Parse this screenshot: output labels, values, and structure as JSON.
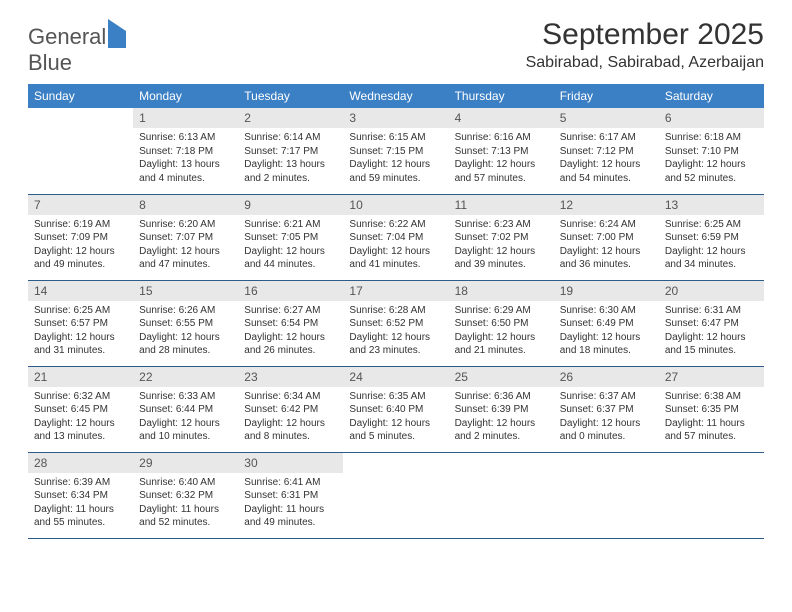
{
  "logo": {
    "word1": "General",
    "word2": "Blue"
  },
  "title": "September 2025",
  "location": "Sabirabad, Sabirabad, Azerbaijan",
  "colors": {
    "header_bg": "#3b7fc4",
    "header_text": "#ffffff",
    "daynum_bg": "#e8e8e8",
    "row_border": "#2e5c8a",
    "body_text": "#333333",
    "background": "#ffffff"
  },
  "typography": {
    "title_fontsize": 30,
    "location_fontsize": 16,
    "header_fontsize": 12,
    "daynum_fontsize": 12,
    "info_fontsize": 10
  },
  "day_headers": [
    "Sunday",
    "Monday",
    "Tuesday",
    "Wednesday",
    "Thursday",
    "Friday",
    "Saturday"
  ],
  "weeks": [
    [
      {
        "n": "",
        "sr": "",
        "ss": "",
        "dl": ""
      },
      {
        "n": "1",
        "sr": "Sunrise: 6:13 AM",
        "ss": "Sunset: 7:18 PM",
        "dl": "Daylight: 13 hours and 4 minutes."
      },
      {
        "n": "2",
        "sr": "Sunrise: 6:14 AM",
        "ss": "Sunset: 7:17 PM",
        "dl": "Daylight: 13 hours and 2 minutes."
      },
      {
        "n": "3",
        "sr": "Sunrise: 6:15 AM",
        "ss": "Sunset: 7:15 PM",
        "dl": "Daylight: 12 hours and 59 minutes."
      },
      {
        "n": "4",
        "sr": "Sunrise: 6:16 AM",
        "ss": "Sunset: 7:13 PM",
        "dl": "Daylight: 12 hours and 57 minutes."
      },
      {
        "n": "5",
        "sr": "Sunrise: 6:17 AM",
        "ss": "Sunset: 7:12 PM",
        "dl": "Daylight: 12 hours and 54 minutes."
      },
      {
        "n": "6",
        "sr": "Sunrise: 6:18 AM",
        "ss": "Sunset: 7:10 PM",
        "dl": "Daylight: 12 hours and 52 minutes."
      }
    ],
    [
      {
        "n": "7",
        "sr": "Sunrise: 6:19 AM",
        "ss": "Sunset: 7:09 PM",
        "dl": "Daylight: 12 hours and 49 minutes."
      },
      {
        "n": "8",
        "sr": "Sunrise: 6:20 AM",
        "ss": "Sunset: 7:07 PM",
        "dl": "Daylight: 12 hours and 47 minutes."
      },
      {
        "n": "9",
        "sr": "Sunrise: 6:21 AM",
        "ss": "Sunset: 7:05 PM",
        "dl": "Daylight: 12 hours and 44 minutes."
      },
      {
        "n": "10",
        "sr": "Sunrise: 6:22 AM",
        "ss": "Sunset: 7:04 PM",
        "dl": "Daylight: 12 hours and 41 minutes."
      },
      {
        "n": "11",
        "sr": "Sunrise: 6:23 AM",
        "ss": "Sunset: 7:02 PM",
        "dl": "Daylight: 12 hours and 39 minutes."
      },
      {
        "n": "12",
        "sr": "Sunrise: 6:24 AM",
        "ss": "Sunset: 7:00 PM",
        "dl": "Daylight: 12 hours and 36 minutes."
      },
      {
        "n": "13",
        "sr": "Sunrise: 6:25 AM",
        "ss": "Sunset: 6:59 PM",
        "dl": "Daylight: 12 hours and 34 minutes."
      }
    ],
    [
      {
        "n": "14",
        "sr": "Sunrise: 6:25 AM",
        "ss": "Sunset: 6:57 PM",
        "dl": "Daylight: 12 hours and 31 minutes."
      },
      {
        "n": "15",
        "sr": "Sunrise: 6:26 AM",
        "ss": "Sunset: 6:55 PM",
        "dl": "Daylight: 12 hours and 28 minutes."
      },
      {
        "n": "16",
        "sr": "Sunrise: 6:27 AM",
        "ss": "Sunset: 6:54 PM",
        "dl": "Daylight: 12 hours and 26 minutes."
      },
      {
        "n": "17",
        "sr": "Sunrise: 6:28 AM",
        "ss": "Sunset: 6:52 PM",
        "dl": "Daylight: 12 hours and 23 minutes."
      },
      {
        "n": "18",
        "sr": "Sunrise: 6:29 AM",
        "ss": "Sunset: 6:50 PM",
        "dl": "Daylight: 12 hours and 21 minutes."
      },
      {
        "n": "19",
        "sr": "Sunrise: 6:30 AM",
        "ss": "Sunset: 6:49 PM",
        "dl": "Daylight: 12 hours and 18 minutes."
      },
      {
        "n": "20",
        "sr": "Sunrise: 6:31 AM",
        "ss": "Sunset: 6:47 PM",
        "dl": "Daylight: 12 hours and 15 minutes."
      }
    ],
    [
      {
        "n": "21",
        "sr": "Sunrise: 6:32 AM",
        "ss": "Sunset: 6:45 PM",
        "dl": "Daylight: 12 hours and 13 minutes."
      },
      {
        "n": "22",
        "sr": "Sunrise: 6:33 AM",
        "ss": "Sunset: 6:44 PM",
        "dl": "Daylight: 12 hours and 10 minutes."
      },
      {
        "n": "23",
        "sr": "Sunrise: 6:34 AM",
        "ss": "Sunset: 6:42 PM",
        "dl": "Daylight: 12 hours and 8 minutes."
      },
      {
        "n": "24",
        "sr": "Sunrise: 6:35 AM",
        "ss": "Sunset: 6:40 PM",
        "dl": "Daylight: 12 hours and 5 minutes."
      },
      {
        "n": "25",
        "sr": "Sunrise: 6:36 AM",
        "ss": "Sunset: 6:39 PM",
        "dl": "Daylight: 12 hours and 2 minutes."
      },
      {
        "n": "26",
        "sr": "Sunrise: 6:37 AM",
        "ss": "Sunset: 6:37 PM",
        "dl": "Daylight: 12 hours and 0 minutes."
      },
      {
        "n": "27",
        "sr": "Sunrise: 6:38 AM",
        "ss": "Sunset: 6:35 PM",
        "dl": "Daylight: 11 hours and 57 minutes."
      }
    ],
    [
      {
        "n": "28",
        "sr": "Sunrise: 6:39 AM",
        "ss": "Sunset: 6:34 PM",
        "dl": "Daylight: 11 hours and 55 minutes."
      },
      {
        "n": "29",
        "sr": "Sunrise: 6:40 AM",
        "ss": "Sunset: 6:32 PM",
        "dl": "Daylight: 11 hours and 52 minutes."
      },
      {
        "n": "30",
        "sr": "Sunrise: 6:41 AM",
        "ss": "Sunset: 6:31 PM",
        "dl": "Daylight: 11 hours and 49 minutes."
      },
      {
        "n": "",
        "sr": "",
        "ss": "",
        "dl": ""
      },
      {
        "n": "",
        "sr": "",
        "ss": "",
        "dl": ""
      },
      {
        "n": "",
        "sr": "",
        "ss": "",
        "dl": ""
      },
      {
        "n": "",
        "sr": "",
        "ss": "",
        "dl": ""
      }
    ]
  ]
}
